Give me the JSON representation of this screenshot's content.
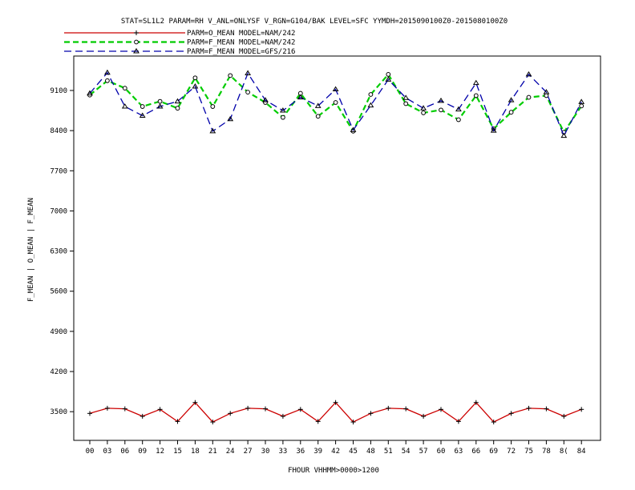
{
  "chart_data": {
    "type": "line",
    "title": "STAT=SL1L2 PARAM=RH V_ANL=ONLYSF V_RGN=G104/BAK LEVEL=SFC YYMDH=2015090100Z0-2015080100Z0",
    "xlabel": "FHOUR VHHMM>0000>1200",
    "ylabel": "F_MEAN | O_MEAN | F_MEAN",
    "categories": [
      "00",
      "03",
      "06",
      "09",
      "12",
      "15",
      "18",
      "21",
      "24",
      "27",
      "30",
      "33",
      "36",
      "39",
      "42",
      "45",
      "48",
      "51",
      "54",
      "57",
      "60",
      "63",
      "66",
      "69",
      "72",
      "75",
      "78",
      "8(",
      "84"
    ],
    "yticks": [
      "3500",
      "4200",
      "4900",
      "5600",
      "6300",
      "7000",
      "7700",
      "8400",
      "9100"
    ],
    "ylim": [
      3000,
      9700
    ],
    "series": [
      {
        "name": "PARM=O_MEAN MODEL=NAM/242",
        "color": "#cc0000",
        "dash": "solid",
        "marker": "plus",
        "values": [
          3470,
          3560,
          3550,
          3420,
          3540,
          3330,
          3660,
          3320,
          3470,
          3560,
          3550,
          3420,
          3540,
          3330,
          3660,
          3320,
          3470,
          3560,
          3550,
          3420,
          3540,
          3330,
          3660,
          3320,
          3470,
          3560,
          3550,
          3420,
          3540
        ]
      },
      {
        "name": "PARM=F_MEAN MODEL=NAM/242",
        "color": "#00cc00",
        "dash": "long",
        "marker": "diamond",
        "values": [
          9020,
          9270,
          9140,
          8820,
          8910,
          8790,
          9320,
          8820,
          9360,
          9070,
          8890,
          8630,
          9050,
          8650,
          8890,
          8390,
          9030,
          9380,
          8870,
          8710,
          8760,
          8590,
          9010,
          8430,
          8720,
          8980,
          9010,
          8370,
          8830
        ]
      },
      {
        "name": "PARM=F_MEAN MODEL=GFS/216",
        "color": "#0000aa",
        "dash": "medium",
        "marker": "triangle",
        "values": [
          9050,
          9410,
          8820,
          8660,
          8820,
          8910,
          9170,
          8390,
          8600,
          9400,
          8930,
          8750,
          8980,
          8830,
          9120,
          8410,
          8840,
          9290,
          8970,
          8790,
          8920,
          8770,
          9230,
          8400,
          8930,
          9380,
          9070,
          8310,
          8900
        ]
      }
    ]
  }
}
